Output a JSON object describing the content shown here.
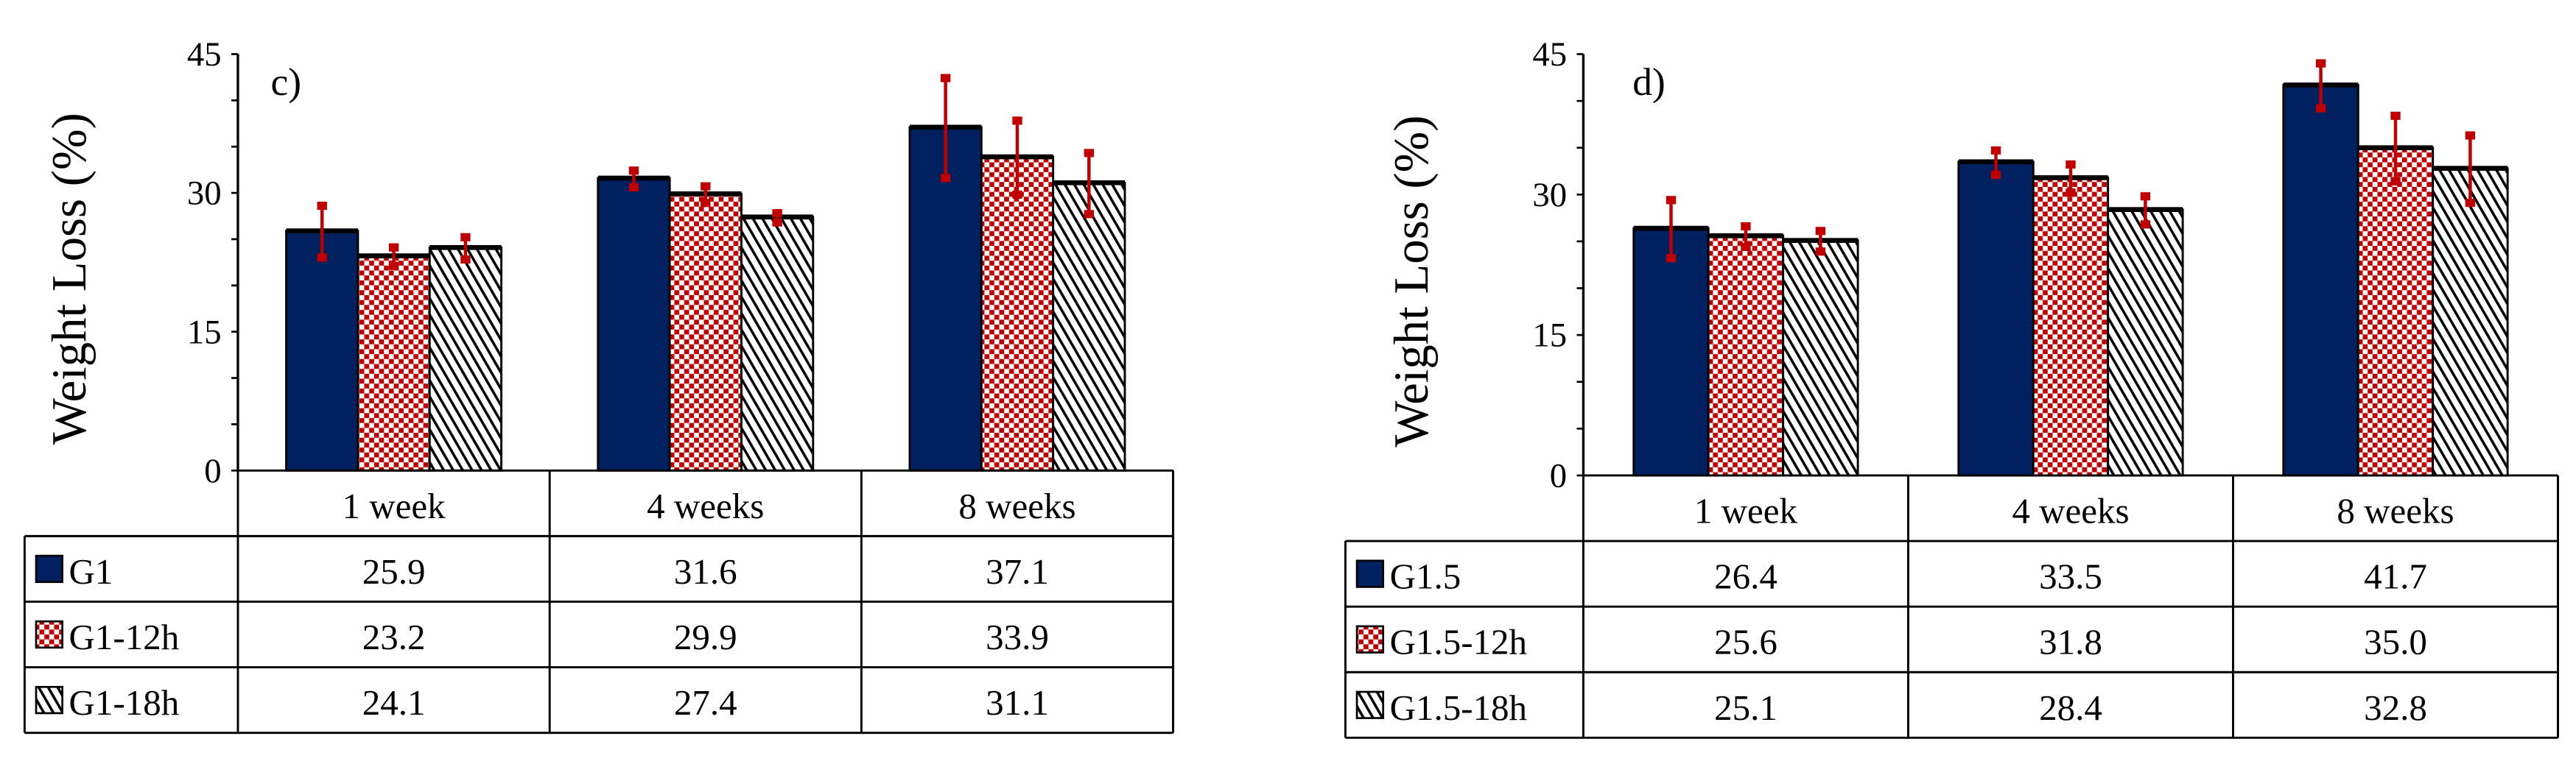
{
  "colors": {
    "navy": "#002060",
    "red": "#c00000",
    "error": "#c00000"
  },
  "chart_data": [
    {
      "type": "bar",
      "panel_label": "c)",
      "ylabel": "Weight Loss (%)",
      "ylim": [
        0,
        45
      ],
      "yticks": [
        "0",
        "15",
        "30",
        "45"
      ],
      "categories": [
        "1 week",
        "4 weeks",
        "8 weeks"
      ],
      "series": [
        {
          "name": "G1",
          "pattern": "solid",
          "values": [
            25.9,
            31.6,
            37.1
          ],
          "labels": [
            "25.9",
            "31.6",
            "37.1"
          ],
          "errors": [
            2.8,
            0.9,
            5.4
          ]
        },
        {
          "name": "G1-12h",
          "pattern": "checker",
          "values": [
            23.2,
            29.9,
            33.9
          ],
          "labels": [
            "23.2",
            "29.9",
            "33.9"
          ],
          "errors": [
            1.0,
            0.9,
            4.0
          ]
        },
        {
          "name": "G1-18h",
          "pattern": "hatch",
          "values": [
            24.1,
            27.4,
            31.1
          ],
          "labels": [
            "24.1",
            "27.4",
            "31.1"
          ],
          "errors": [
            1.2,
            0.5,
            3.3
          ]
        }
      ]
    },
    {
      "type": "bar",
      "panel_label": "d)",
      "ylabel": "Weight Loss (%)",
      "ylim": [
        0,
        45
      ],
      "yticks": [
        "0",
        "15",
        "30",
        "45"
      ],
      "categories": [
        "1 week",
        "4 weeks",
        "8 weeks"
      ],
      "series": [
        {
          "name": "G1.5",
          "pattern": "solid",
          "values": [
            26.4,
            33.5,
            41.7
          ],
          "labels": [
            "26.4",
            "33.5",
            "41.7"
          ],
          "errors": [
            3.1,
            1.3,
            2.4
          ]
        },
        {
          "name": "G1.5-12h",
          "pattern": "checker",
          "values": [
            25.6,
            31.8,
            35.0
          ],
          "labels": [
            "25.6",
            "31.8",
            "35.0"
          ],
          "errors": [
            1.1,
            1.5,
            3.5
          ]
        },
        {
          "name": "G1.5-18h",
          "pattern": "hatch",
          "values": [
            25.1,
            28.4,
            32.8
          ],
          "labels": [
            "25.1",
            "28.4",
            "32.8"
          ],
          "errors": [
            1.1,
            1.5,
            3.6
          ]
        }
      ]
    }
  ]
}
